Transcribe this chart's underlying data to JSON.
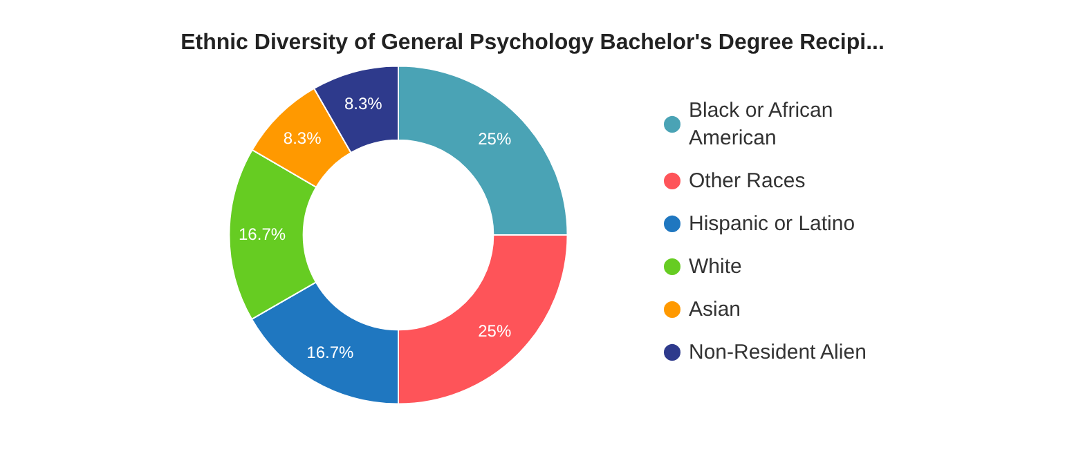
{
  "chart_data": {
    "type": "donut",
    "title": "Ethnic Diversity of General Psychology Bachelor's Degree Recipi...",
    "categories": [
      "Black or African American",
      "Other Races",
      "Hispanic or Latino",
      "White",
      "Asian",
      "Non-Resident Alien"
    ],
    "values": [
      25,
      25,
      16.7,
      16.7,
      8.3,
      8.3
    ],
    "colors": [
      "#4aa3b5",
      "#fe5459",
      "#1f77c0",
      "#66cc22",
      "#ff9900",
      "#2e3a8c"
    ],
    "value_labels": [
      "25%",
      "25%",
      "16.7%",
      "16.7%",
      "8.3%",
      "8.3%"
    ],
    "legend": "right"
  }
}
